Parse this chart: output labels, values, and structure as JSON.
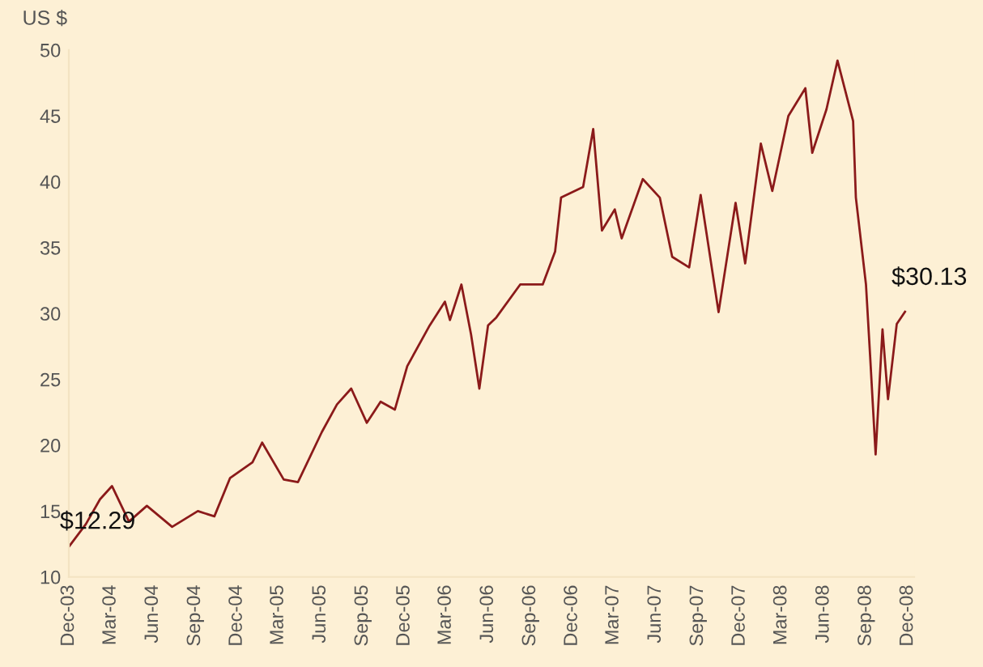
{
  "chart_data": {
    "type": "line",
    "ylabel": "US $",
    "x": [
      "2003-12-01",
      "2004-01-07",
      "2004-02-07",
      "2004-03-04",
      "2004-04-10",
      "2004-05-19",
      "2004-07-13",
      "2004-09-07",
      "2004-10-13",
      "2004-11-16",
      "2005-01-04",
      "2005-01-25",
      "2005-03-13",
      "2005-04-13",
      "2005-06-04",
      "2005-07-07",
      "2005-08-07",
      "2005-09-10",
      "2005-10-10",
      "2005-11-10",
      "2005-12-07",
      "2006-01-25",
      "2006-02-27",
      "2006-03-10",
      "2006-04-04",
      "2006-04-25",
      "2006-05-13",
      "2006-06-01",
      "2006-06-19",
      "2006-08-10",
      "2006-09-28",
      "2006-10-25",
      "2006-11-07",
      "2006-12-25",
      "2007-01-16",
      "2007-02-04",
      "2007-03-04",
      "2007-03-19",
      "2007-05-04",
      "2007-06-10",
      "2007-07-07",
      "2007-08-13",
      "2007-09-07",
      "2007-10-16",
      "2007-11-22",
      "2007-12-13",
      "2008-01-16",
      "2008-02-10",
      "2008-03-16",
      "2008-04-22",
      "2008-05-07",
      "2008-06-07",
      "2008-07-01",
      "2008-08-04",
      "2008-08-10",
      "2008-09-01",
      "2008-09-10",
      "2008-09-22",
      "2008-10-07",
      "2008-10-19",
      "2008-11-07",
      "2008-11-25"
    ],
    "series": [
      {
        "color": "#8b1a1a",
        "values": [
          12.29,
          14.0,
          15.9,
          16.9,
          14.2,
          15.4,
          13.8,
          15.0,
          14.6,
          17.5,
          18.7,
          20.2,
          17.4,
          17.2,
          21.0,
          23.1,
          24.3,
          21.7,
          23.3,
          22.7,
          26.0,
          29.1,
          30.9,
          29.5,
          32.2,
          28.4,
          24.3,
          29.1,
          29.7,
          32.2,
          32.2,
          34.7,
          38.8,
          39.6,
          44.0,
          36.3,
          37.9,
          35.7,
          40.2,
          38.8,
          34.3,
          33.5,
          39.0,
          30.1,
          38.4,
          33.8,
          42.9,
          39.3,
          45.0,
          47.1,
          42.2,
          45.5,
          49.2,
          44.6,
          38.8,
          32.2,
          26.8,
          19.3,
          28.8,
          23.5,
          29.2,
          30.13
        ]
      }
    ],
    "annotations": [
      {
        "text": "$12.29",
        "x": "2003-12-01",
        "y": 12.29
      },
      {
        "text": "$30.13",
        "x": "2008-11-25",
        "y": 30.13
      }
    ],
    "xlim": [
      "2003-12-01",
      "2008-12-15"
    ],
    "ylim": [
      10,
      50
    ],
    "yticks": [
      10,
      15,
      20,
      25,
      30,
      35,
      40,
      45,
      50
    ],
    "xticks": [
      {
        "value": "2003-12-01",
        "label": "Dec-03"
      },
      {
        "value": "2004-03-01",
        "label": "Mar-04"
      },
      {
        "value": "2004-06-01",
        "label": "Jun-04"
      },
      {
        "value": "2004-09-01",
        "label": "Sep-04"
      },
      {
        "value": "2004-12-01",
        "label": "Dec-04"
      },
      {
        "value": "2005-03-01",
        "label": "Mar-05"
      },
      {
        "value": "2005-06-01",
        "label": "Jun-05"
      },
      {
        "value": "2005-09-01",
        "label": "Sep-05"
      },
      {
        "value": "2005-12-01",
        "label": "Dec-05"
      },
      {
        "value": "2006-03-01",
        "label": "Mar-06"
      },
      {
        "value": "2006-06-01",
        "label": "Jun-06"
      },
      {
        "value": "2006-09-01",
        "label": "Sep-06"
      },
      {
        "value": "2006-12-01",
        "label": "Dec-06"
      },
      {
        "value": "2007-03-01",
        "label": "Mar-07"
      },
      {
        "value": "2007-06-01",
        "label": "Jun-07"
      },
      {
        "value": "2007-09-01",
        "label": "Sep-07"
      },
      {
        "value": "2007-12-01",
        "label": "Dec-07"
      },
      {
        "value": "2008-03-01",
        "label": "Mar-08"
      },
      {
        "value": "2008-06-01",
        "label": "Jun-08"
      },
      {
        "value": "2008-09-01",
        "label": "Sep-08"
      },
      {
        "value": "2008-12-01",
        "label": "Dec-08"
      }
    ],
    "grid": false,
    "legend": false
  }
}
